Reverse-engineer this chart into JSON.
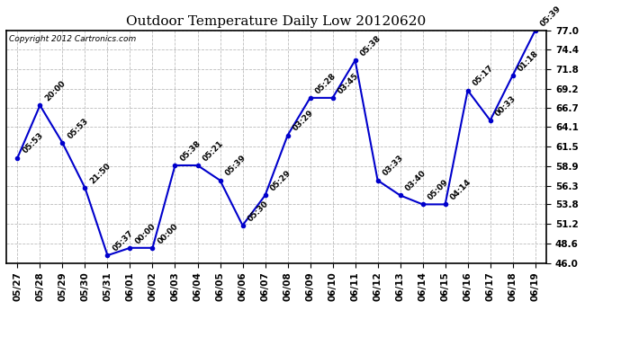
{
  "title": "Outdoor Temperature Daily Low 20120620",
  "copyright": "Copyright 2012 Cartronics.com",
  "x_labels": [
    "05/27",
    "05/28",
    "05/29",
    "05/30",
    "05/31",
    "06/01",
    "06/02",
    "06/03",
    "06/04",
    "06/05",
    "06/06",
    "06/07",
    "06/08",
    "06/09",
    "06/10",
    "06/11",
    "06/12",
    "06/13",
    "06/14",
    "06/15",
    "06/16",
    "06/17",
    "06/18",
    "06/19"
  ],
  "y_values": [
    60.0,
    67.0,
    62.0,
    56.0,
    47.0,
    48.0,
    48.0,
    59.0,
    59.0,
    57.0,
    51.0,
    55.0,
    63.0,
    68.0,
    68.0,
    73.0,
    57.0,
    55.0,
    53.8,
    53.8,
    69.0,
    65.0,
    71.0,
    77.0
  ],
  "point_labels": [
    "05:53",
    "20:00",
    "05:53",
    "21:50",
    "05:37",
    "00:00",
    "00:00",
    "05:38",
    "05:21",
    "05:39",
    "05:30",
    "05:29",
    "03:29",
    "05:28",
    "03:45",
    "05:38",
    "03:33",
    "03:40",
    "05:09",
    "04:14",
    "05:17",
    "00:33",
    "01:18",
    "05:39"
  ],
  "y_min": 46.0,
  "y_max": 77.0,
  "y_ticks": [
    46.0,
    48.6,
    51.2,
    53.8,
    56.3,
    58.9,
    61.5,
    64.1,
    66.7,
    69.2,
    71.8,
    74.4,
    77.0
  ],
  "line_color": "#0000CC",
  "marker_color": "#0000CC",
  "bg_color": "#ffffff",
  "grid_color": "#bbbbbb",
  "title_fontsize": 11,
  "label_fontsize": 6.5,
  "tick_fontsize": 7.5,
  "copyright_fontsize": 6.5
}
